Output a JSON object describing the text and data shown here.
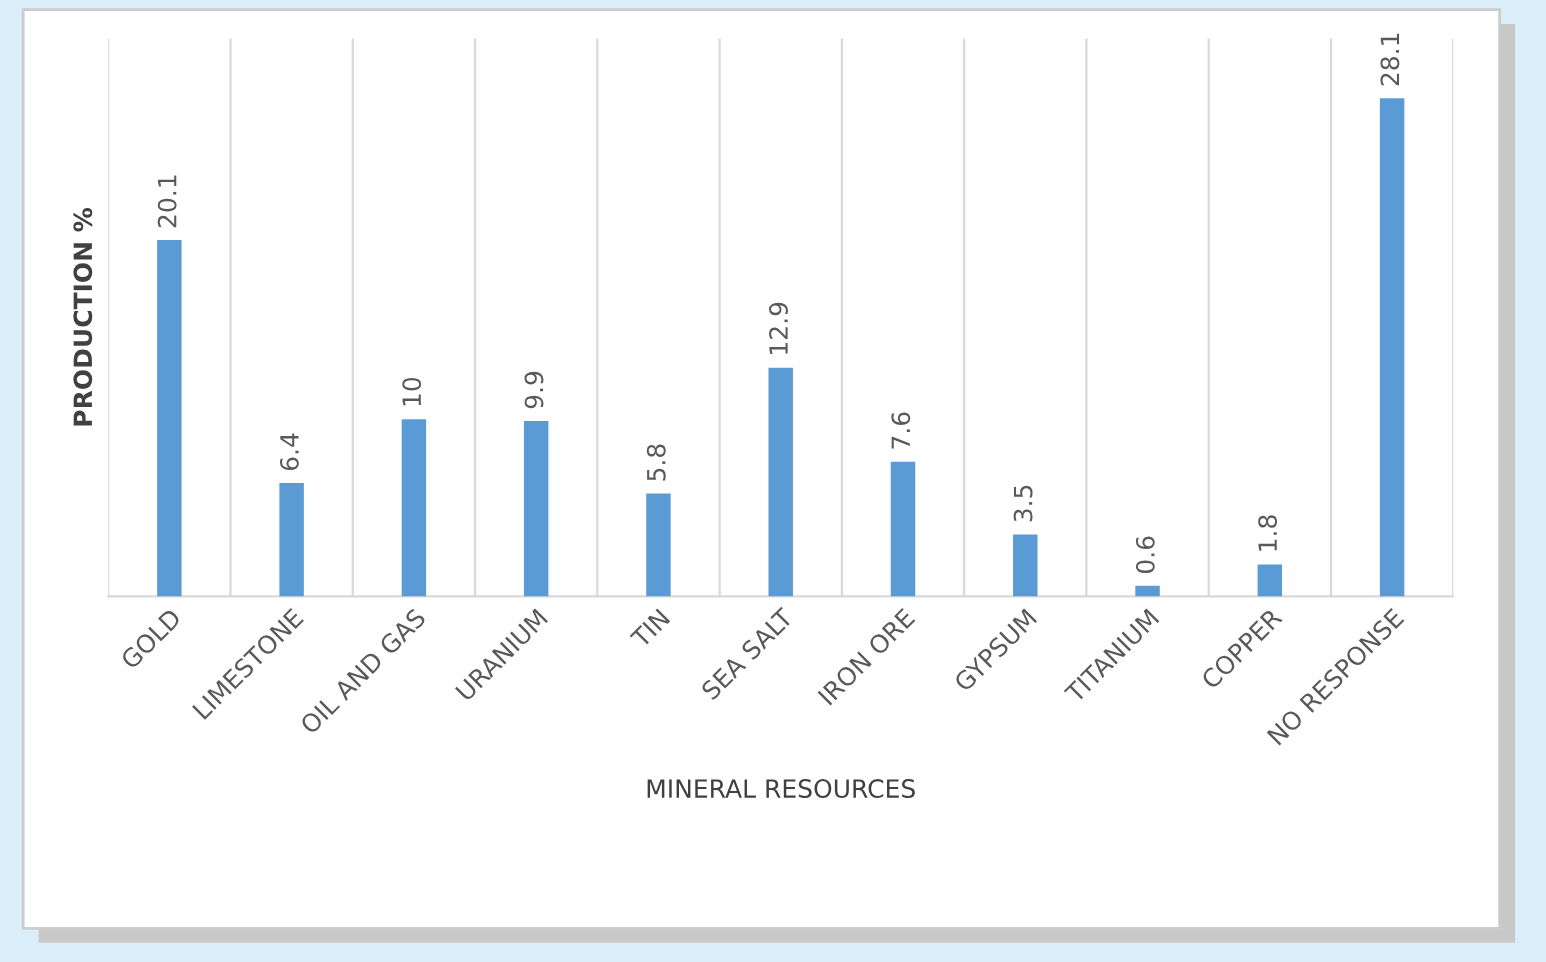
{
  "chart_data": {
    "type": "bar",
    "xlabel": "MINERAL RESOURCES",
    "ylabel": "PRODUCTION %",
    "categories": [
      "GOLD",
      "LIMESTONE",
      "OIL AND GAS",
      "URANIUM",
      "TIN",
      "SEA SALT",
      "IRON ORE",
      "GYPSUM",
      "TITANIUM",
      "COPPER",
      "NO RESPONSE"
    ],
    "values": [
      20.1,
      6.4,
      10,
      9.9,
      5.8,
      12.9,
      7.6,
      3.5,
      0.6,
      1.8,
      28.1
    ],
    "color": "#5b9bd5",
    "data_labels": true,
    "grid": "x",
    "tick_labels": "x"
  }
}
